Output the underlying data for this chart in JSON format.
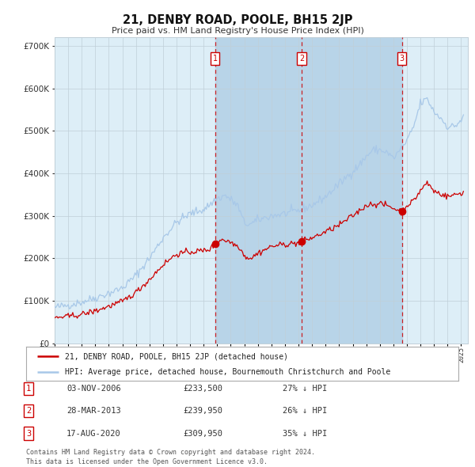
{
  "title": "21, DENBY ROAD, POOLE, BH15 2JP",
  "subtitle": "Price paid vs. HM Land Registry's House Price Index (HPI)",
  "background_color": "#ffffff",
  "ylim": [
    0,
    720000
  ],
  "yticks": [
    0,
    100000,
    200000,
    300000,
    400000,
    500000,
    600000,
    700000
  ],
  "ytick_labels": [
    "£0",
    "£100K",
    "£200K",
    "£300K",
    "£400K",
    "£500K",
    "£600K",
    "£700K"
  ],
  "sale_year_decimals": [
    2006.836,
    2013.231,
    2020.628
  ],
  "sale_prices": [
    233500,
    239950,
    309950
  ],
  "sale_labels": [
    "1",
    "2",
    "3"
  ],
  "legend_property": "21, DENBY ROAD, POOLE, BH15 2JP (detached house)",
  "legend_hpi": "HPI: Average price, detached house, Bournemouth Christchurch and Poole",
  "table_rows": [
    [
      "1",
      "03-NOV-2006",
      "£233,500",
      "27% ↓ HPI"
    ],
    [
      "2",
      "28-MAR-2013",
      "£239,950",
      "26% ↓ HPI"
    ],
    [
      "3",
      "17-AUG-2020",
      "£309,950",
      "35% ↓ HPI"
    ]
  ],
  "footer": "Contains HM Land Registry data © Crown copyright and database right 2024.\nThis data is licensed under the Open Government Licence v3.0.",
  "hpi_color": "#a8c8e8",
  "property_color": "#cc0000",
  "dashed_color": "#cc0000",
  "marker_color": "#cc0000",
  "chart_facecolor": "#ddeef7",
  "grid_color": "#c0cfd8",
  "span_color": "#b8d4e8"
}
